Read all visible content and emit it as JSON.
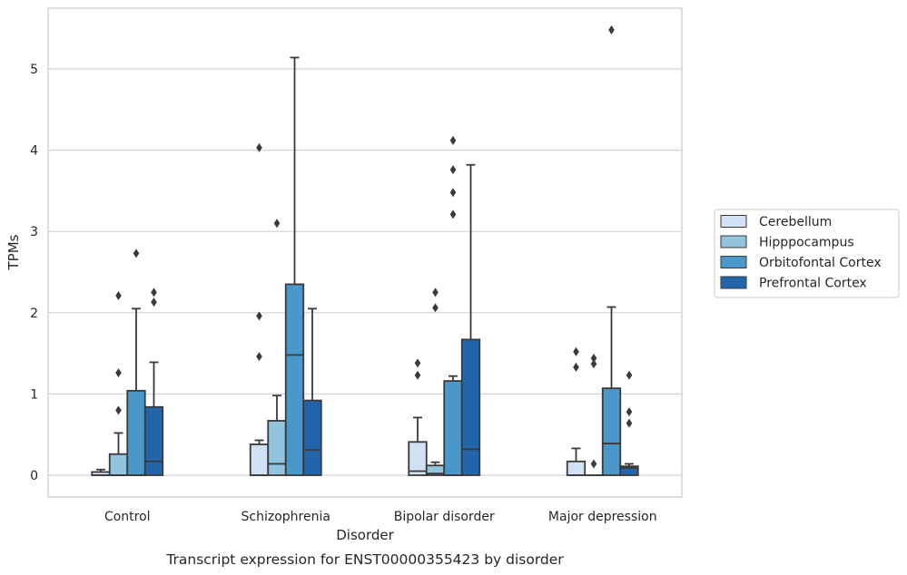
{
  "chart_data": {
    "type": "box",
    "title": "",
    "caption": "Transcript expression for ENST00000355423 by disorder",
    "xlabel": "Disorder",
    "ylabel": "TPMs",
    "ylim": [
      -0.27,
      5.73
    ],
    "yticks": [
      0,
      1,
      2,
      3,
      4,
      5
    ],
    "grid": "horizontal",
    "legend_position": "right",
    "categories": [
      "Control",
      "Schizophrenia",
      "Bipolar disorder",
      "Major depression"
    ],
    "series": [
      {
        "name": "Cerebellum",
        "color": "#cfe1f2",
        "boxes": [
          {
            "whislo": 0,
            "q1": 0,
            "med": 0,
            "q3": 0.04,
            "whishi": 0.07,
            "fliers": []
          },
          {
            "whislo": 0,
            "q1": 0,
            "med": 0,
            "q3": 0.38,
            "whishi": 0.43,
            "fliers": [
              4.03,
              1.96,
              1.46
            ]
          },
          {
            "whislo": 0,
            "q1": 0,
            "med": 0.05,
            "q3": 0.41,
            "whishi": 0.71,
            "fliers": [
              1.38,
              1.23
            ]
          },
          {
            "whislo": 0,
            "q1": 0,
            "med": 0,
            "q3": 0.17,
            "whishi": 0.33,
            "fliers": [
              1.52,
              1.33
            ]
          }
        ]
      },
      {
        "name": "Hipppocampus",
        "color": "#93c4de",
        "boxes": [
          {
            "whislo": 0,
            "q1": 0,
            "med": 0,
            "q3": 0.26,
            "whishi": 0.52,
            "fliers": [
              2.21,
              1.26,
              0.8
            ]
          },
          {
            "whislo": 0,
            "q1": 0,
            "med": 0.14,
            "q3": 0.67,
            "whishi": 0.98,
            "fliers": [
              3.1
            ]
          },
          {
            "whislo": 0,
            "q1": 0,
            "med": 0.02,
            "q3": 0.12,
            "whishi": 0.16,
            "fliers": [
              2.25,
              2.06
            ]
          },
          {
            "whislo": 0,
            "q1": 0,
            "med": 0,
            "q3": 0,
            "whishi": 0,
            "fliers": [
              1.44,
              1.37,
              0.14
            ]
          }
        ]
      },
      {
        "name": "Orbitofontal Cortex",
        "color": "#4a98c9",
        "boxes": [
          {
            "whislo": 0,
            "q1": 0,
            "med": 0,
            "q3": 1.04,
            "whishi": 2.05,
            "fliers": [
              2.73
            ]
          },
          {
            "whislo": 0,
            "q1": 0,
            "med": 1.48,
            "q3": 2.35,
            "whishi": 5.14,
            "fliers": []
          },
          {
            "whislo": 0,
            "q1": 0,
            "med": 0,
            "q3": 1.16,
            "whishi": 1.22,
            "fliers": [
              4.12,
              3.76,
              3.48,
              3.21
            ]
          },
          {
            "whislo": 0,
            "q1": 0,
            "med": 0.39,
            "q3": 1.07,
            "whishi": 2.07,
            "fliers": [
              5.48
            ]
          }
        ]
      },
      {
        "name": "Prefrontal Cortex",
        "color": "#2365aa",
        "boxes": [
          {
            "whislo": 0,
            "q1": 0,
            "med": 0.17,
            "q3": 0.84,
            "whishi": 1.39,
            "fliers": [
              2.25,
              2.13
            ]
          },
          {
            "whislo": 0,
            "q1": 0,
            "med": 0.31,
            "q3": 0.92,
            "whishi": 2.05,
            "fliers": []
          },
          {
            "whislo": 0,
            "q1": 0,
            "med": 0.32,
            "q3": 1.67,
            "whishi": 3.82,
            "fliers": []
          },
          {
            "whislo": 0,
            "q1": 0,
            "med": 0.09,
            "q3": 0.11,
            "whishi": 0.14,
            "fliers": [
              1.23,
              0.78,
              0.64
            ]
          }
        ]
      }
    ]
  },
  "colors": {
    "box_edge": "#3a3a3a",
    "grid": "#d3d3d3",
    "frame": "#cccccc",
    "text": "#262626"
  }
}
